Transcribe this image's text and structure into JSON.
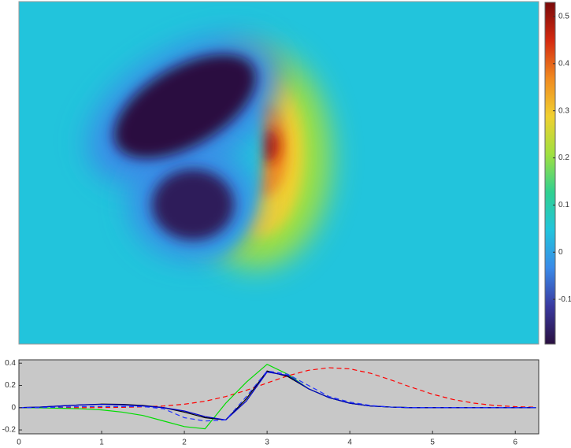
{
  "chart_data": [
    {
      "type": "heatmap",
      "colorbar": {
        "ylim": [
          -0.195,
          0.53
        ],
        "yticks": [
          -0.1,
          0,
          0.1,
          0.2,
          0.3,
          0.4,
          0.5
        ],
        "colors": [
          "#2a1040",
          "#3a3aa0",
          "#3a8ae8",
          "#22c4dc",
          "#30d090",
          "#a0e040",
          "#f0d030",
          "#f08a20",
          "#d42a10",
          "#7a0a0a"
        ]
      }
    },
    {
      "type": "line",
      "background": "#c8c8c8",
      "xlim": [
        0,
        6.2832
      ],
      "ylim": [
        -0.235,
        0.43
      ],
      "xticks": [
        0,
        1,
        2,
        3,
        4,
        5,
        6
      ],
      "yticks": [
        -0.2,
        0,
        0.2,
        0.4
      ],
      "x": [
        0,
        0.25,
        0.5,
        0.75,
        1,
        1.25,
        1.5,
        1.75,
        2,
        2.25,
        2.5,
        2.75,
        3,
        3.25,
        3.5,
        3.75,
        4,
        4.25,
        4.5,
        4.75,
        5,
        5.25,
        5.5,
        5.75,
        6,
        6.25
      ],
      "series": [
        {
          "color": "#ff0000",
          "dash": true,
          "values": [
            0,
            0,
            0,
            0,
            0.001,
            0.003,
            0.007,
            0.015,
            0.031,
            0.058,
            0.1,
            0.156,
            0.222,
            0.286,
            0.336,
            0.359,
            0.349,
            0.309,
            0.248,
            0.182,
            0.121,
            0.073,
            0.041,
            0.02,
            0.009,
            0.004
          ]
        },
        {
          "color": "#00dd00",
          "dash": false,
          "values": [
            0,
            -0.002,
            -0.005,
            -0.01,
            -0.02,
            -0.04,
            -0.07,
            -0.12,
            -0.17,
            -0.19,
            0.04,
            0.23,
            0.39,
            0.3,
            0.17,
            0.09,
            0.04,
            0.015,
            0.005,
            0,
            0,
            0,
            0,
            0,
            0,
            0
          ]
        },
        {
          "color": "#000000",
          "dash": false,
          "values": [
            0,
            0.005,
            0.015,
            0.025,
            0.032,
            0.03,
            0.02,
            0,
            -0.04,
            -0.09,
            -0.11,
            0.08,
            0.33,
            0.28,
            0.17,
            0.09,
            0.04,
            0.015,
            0.005,
            0,
            0,
            0,
            0,
            0,
            0,
            0
          ]
        },
        {
          "color": "#0000cc",
          "dash": false,
          "values": [
            0,
            0.005,
            0.015,
            0.025,
            0.03,
            0.025,
            0.015,
            0,
            -0.03,
            -0.08,
            -0.11,
            0.06,
            0.32,
            0.29,
            0.17,
            0.09,
            0.04,
            0.015,
            0.005,
            0,
            0,
            0,
            0,
            0,
            0,
            0
          ]
        },
        {
          "color": "#2233ff",
          "dash": true,
          "values": [
            0,
            0,
            0.005,
            0.01,
            0.01,
            0.01,
            0.01,
            -0.01,
            -0.09,
            -0.12,
            -0.11,
            0.1,
            0.33,
            0.3,
            0.2,
            0.1,
            0.05,
            0.02,
            0.005,
            0,
            0,
            0,
            0,
            0,
            0,
            0
          ]
        }
      ]
    }
  ]
}
